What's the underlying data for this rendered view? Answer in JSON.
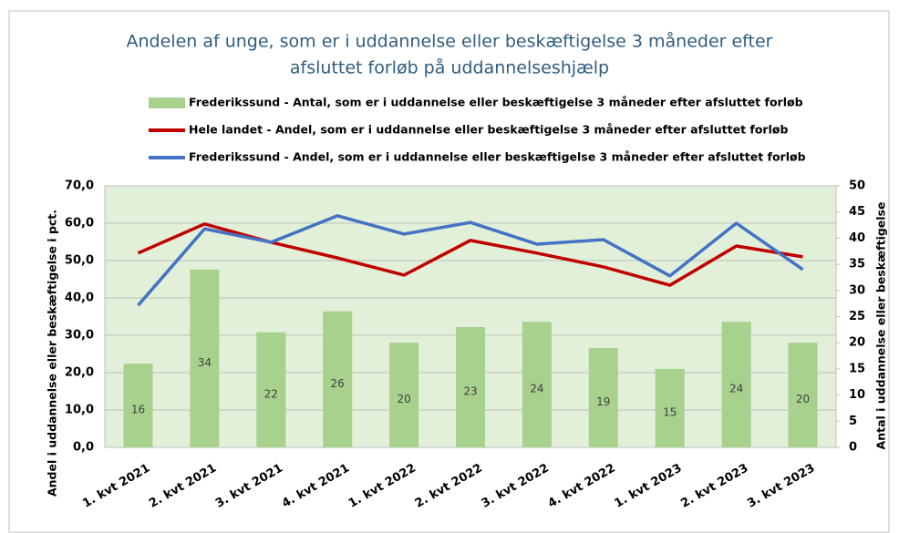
{
  "chart_data": {
    "type": "bar_line",
    "title": [
      "Andelen af unge, som er i uddannelse eller beskæftigelse 3 måneder efter",
      "afsluttet forløb på uddannelseshjælp"
    ],
    "categories": [
      "1. kvt 2021",
      "2. kvt 2021",
      "3. kvt 2021",
      "4. kvt 2021",
      "1. kvt 2022",
      "2. kvt 2022",
      "3. kvt 2022",
      "4. kvt 2022",
      "1. kvt 2023",
      "2. kvt 2023",
      "3. kvt 2023"
    ],
    "series": [
      {
        "name": "Frederikssund - Antal, som er i uddannelse eller beskæftigelse 3 måneder efter afsluttet forløb",
        "type": "bar",
        "axis": "y2",
        "color": "#a9d18e",
        "values": [
          16,
          34,
          22,
          26,
          20,
          23,
          24,
          19,
          15,
          24,
          20
        ]
      },
      {
        "name": "Hele landet - Andel, som er i uddannelse eller beskæftigelse 3 måneder efter afsluttet forløb",
        "type": "line",
        "color": "#c00000",
        "values": [
          52.0,
          59.8,
          54.9,
          50.7,
          46.1,
          55.4,
          52.0,
          48.3,
          43.4,
          53.9,
          51.0
        ]
      },
      {
        "name": "Frederikssund - Andel, som er i uddannelse eller beskæftigelse 3 måneder efter afsluttet forløb",
        "type": "line",
        "color": "#4472c4",
        "values": [
          38.0,
          58.5,
          54.9,
          62.0,
          57.1,
          60.2,
          54.4,
          55.6,
          45.9,
          60.0,
          47.6
        ]
      }
    ],
    "ylabel": "Andel i uddannelse eller beskæftigelse i pct.",
    "y2label": "Antal i uddannelse eller beskæftigelse",
    "ylim": [
      0,
      70
    ],
    "yticks": [
      {
        "value": 0,
        "label": "0,0"
      },
      {
        "value": 10,
        "label": "10,0"
      },
      {
        "value": 20,
        "label": "20,0"
      },
      {
        "value": 30,
        "label": "30,0"
      },
      {
        "value": 40,
        "label": "40,0"
      },
      {
        "value": 50,
        "label": "50,0"
      },
      {
        "value": 60,
        "label": "60,0"
      },
      {
        "value": 70,
        "label": "70,0"
      }
    ],
    "y2lim": [
      0,
      50
    ],
    "y2ticks": [
      0,
      5,
      10,
      15,
      20,
      25,
      30,
      35,
      40,
      45,
      50
    ],
    "grid": true,
    "legend": "top"
  }
}
